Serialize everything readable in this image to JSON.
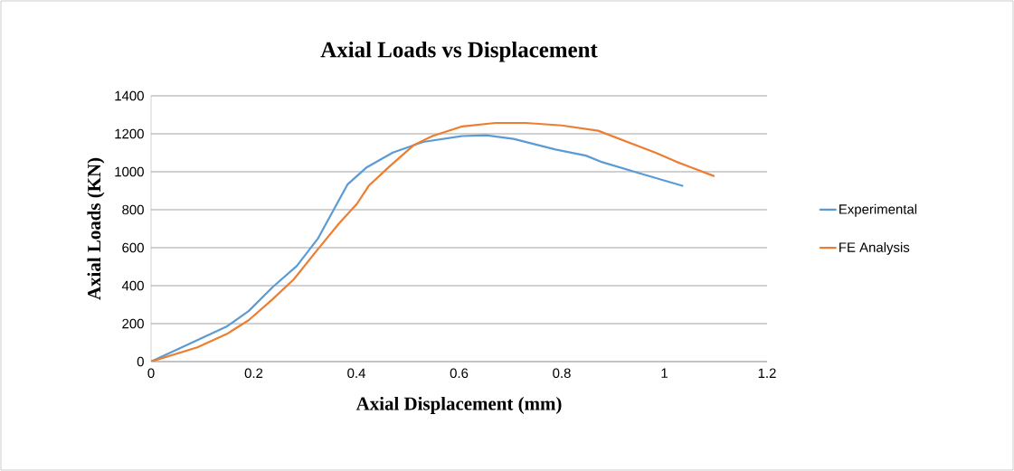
{
  "chart_data": {
    "type": "line",
    "title": "Axial Loads vs Displacement",
    "xlabel": "Axial Displacement (mm)",
    "ylabel": "Axial Loads (KN)",
    "xlim": [
      0,
      1.2
    ],
    "ylim": [
      0,
      1400
    ],
    "xticks": [
      0,
      0.2,
      0.4,
      0.6,
      0.8,
      1,
      1.2
    ],
    "yticks": [
      0,
      200,
      400,
      600,
      800,
      1000,
      1200,
      1400
    ],
    "grid": "y",
    "legend": "right",
    "marker": "none",
    "line_style": "solid",
    "series": [
      {
        "name": "Experimental",
        "color": "#5b9bd5",
        "x": [
          0,
          0.148,
          0.19,
          0.237,
          0.284,
          0.325,
          0.354,
          0.383,
          0.419,
          0.471,
          0.53,
          0.606,
          0.653,
          0.706,
          0.788,
          0.847,
          0.876,
          0.964,
          1.035
        ],
        "values": [
          0,
          186,
          266,
          393,
          504,
          648,
          791,
          934,
          1021,
          1101,
          1157,
          1188,
          1192,
          1173,
          1117,
          1085,
          1053,
          982,
          926
        ]
      },
      {
        "name": "FE Analysis",
        "color": "#ed7d31",
        "x": [
          0,
          0.09,
          0.148,
          0.19,
          0.237,
          0.278,
          0.325,
          0.366,
          0.401,
          0.424,
          0.465,
          0.512,
          0.548,
          0.606,
          0.671,
          0.73,
          0.8,
          0.871,
          0.982,
          1.023,
          1.096
        ],
        "values": [
          0,
          75,
          146,
          218,
          329,
          433,
          592,
          727,
          831,
          926,
          1029,
          1141,
          1188,
          1239,
          1257,
          1257,
          1244,
          1216,
          1101,
          1053,
          978
        ]
      }
    ]
  }
}
